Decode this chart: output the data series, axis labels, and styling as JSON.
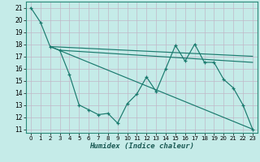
{
  "xlabel": "Humidex (Indice chaleur)",
  "background_color": "#c5ebe8",
  "grid_color": "#d8f0ee",
  "line_color": "#1a7a6e",
  "xlim": [
    -0.5,
    23.5
  ],
  "ylim": [
    10.7,
    21.5
  ],
  "xticks": [
    0,
    1,
    2,
    3,
    4,
    5,
    6,
    7,
    8,
    9,
    10,
    11,
    12,
    13,
    14,
    15,
    16,
    17,
    18,
    19,
    20,
    21,
    22,
    23
  ],
  "yticks": [
    11,
    12,
    13,
    14,
    15,
    16,
    17,
    18,
    19,
    20,
    21
  ],
  "main_line_x": [
    0,
    1,
    2,
    3,
    4,
    5,
    6,
    7,
    8,
    9,
    10,
    11,
    12,
    13,
    14,
    15,
    16,
    17,
    18,
    19,
    20,
    21,
    22,
    23
  ],
  "main_line_y": [
    21.0,
    19.8,
    17.8,
    17.5,
    15.5,
    13.0,
    12.6,
    12.2,
    12.3,
    11.5,
    13.1,
    13.9,
    15.3,
    14.1,
    16.0,
    17.9,
    16.6,
    18.0,
    16.5,
    16.5,
    15.1,
    14.4,
    13.0,
    11.0
  ],
  "trend1_x": [
    2,
    23
  ],
  "trend1_y": [
    17.8,
    17.0
  ],
  "trend2_x": [
    3,
    23
  ],
  "trend2_y": [
    17.5,
    16.5
  ],
  "trend3_x": [
    2,
    23
  ],
  "trend3_y": [
    17.8,
    11.0
  ]
}
